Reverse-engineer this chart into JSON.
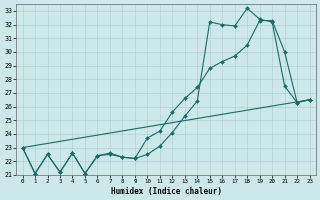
{
  "xlabel": "Humidex (Indice chaleur)",
  "bg_color": "#cce8e8",
  "grid_color": "#aacccc",
  "line_color": "#1a6b6b",
  "xlim": [
    -0.5,
    23.5
  ],
  "ylim": [
    21,
    33.5
  ],
  "xticks": [
    0,
    1,
    2,
    3,
    4,
    5,
    6,
    7,
    8,
    9,
    10,
    11,
    12,
    13,
    14,
    15,
    16,
    17,
    18,
    19,
    20,
    21,
    22,
    23
  ],
  "yticks": [
    21,
    22,
    23,
    24,
    25,
    26,
    27,
    28,
    29,
    30,
    31,
    32,
    33
  ],
  "line1_x": [
    0,
    1,
    2,
    3,
    4,
    5,
    6,
    7,
    8,
    9,
    10,
    11,
    12,
    13,
    14,
    15,
    16,
    17,
    18,
    19,
    20,
    21,
    22,
    23
  ],
  "line1_y": [
    23.0,
    21.1,
    22.5,
    21.2,
    22.6,
    21.1,
    22.4,
    22.6,
    22.3,
    22.2,
    23.7,
    24.2,
    25.6,
    26.6,
    27.4,
    28.8,
    29.3,
    29.7,
    30.5,
    32.3,
    32.3,
    30.0,
    26.3,
    26.5
  ],
  "line2_x": [
    0,
    1,
    2,
    3,
    4,
    5,
    6,
    7,
    8,
    9,
    10,
    11,
    12,
    13,
    14,
    15,
    16,
    17,
    18,
    19,
    20,
    21,
    22,
    23
  ],
  "line2_y": [
    23.0,
    21.1,
    22.5,
    21.2,
    22.6,
    21.1,
    22.4,
    22.5,
    22.3,
    22.2,
    22.5,
    23.1,
    24.1,
    25.3,
    26.4,
    32.2,
    32.0,
    31.9,
    33.2,
    32.4,
    32.2,
    27.5,
    26.3,
    26.5
  ],
  "line3_x": [
    0,
    23
  ],
  "line3_y": [
    23.0,
    26.5
  ]
}
